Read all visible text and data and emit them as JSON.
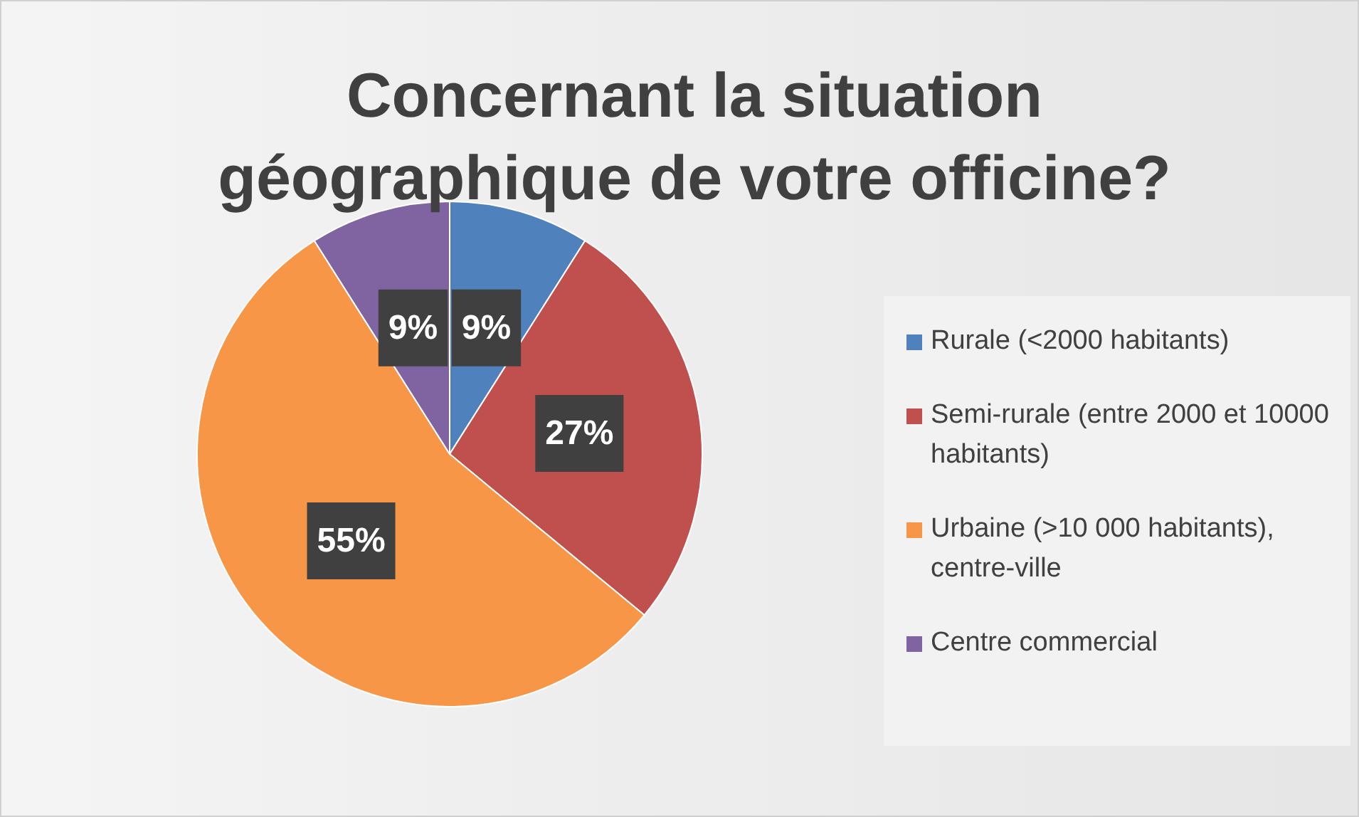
{
  "chart_data": {
    "type": "pie",
    "title": "Concernant la situation géographique de votre officine?",
    "categories": [
      "Rurale (<2000 habitants)",
      "Semi-rurale (entre 2000 et 10000 habitants)",
      "Urbaine (>10 000 habitants), centre-ville",
      "Centre commercial"
    ],
    "values": [
      9,
      27,
      55,
      9
    ],
    "colors": [
      "#4f81bd",
      "#c0504d",
      "#f79646",
      "#8064a2"
    ],
    "value_labels": [
      "9%",
      "27%",
      "55%",
      "9%"
    ],
    "legend": "right"
  }
}
